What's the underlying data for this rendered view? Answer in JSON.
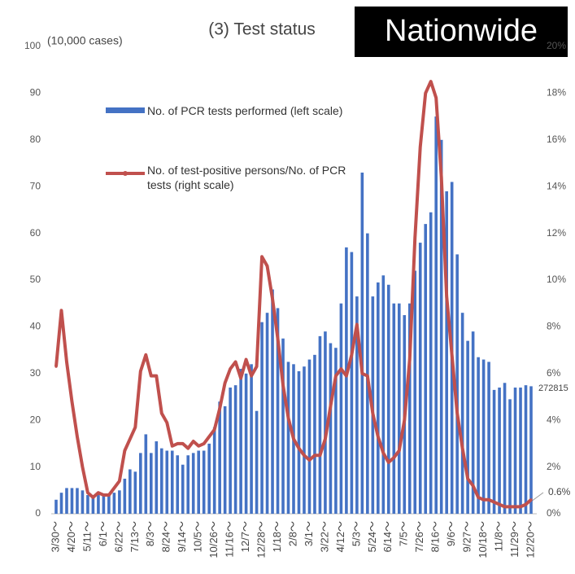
{
  "chart_data": {
    "type": "bar_line",
    "title": "(3) Test status",
    "badge": "Nationwide",
    "y_label": "(10,000 cases)",
    "categories": [
      "3/30～",
      null,
      null,
      "4/20～",
      null,
      null,
      "5/11～",
      null,
      null,
      "6/1～",
      null,
      null,
      "6/22～",
      null,
      null,
      "7/13～",
      null,
      null,
      "8/3～",
      null,
      null,
      "8/24～",
      null,
      null,
      "9/14～",
      null,
      null,
      "10/5～",
      null,
      null,
      "10/26～",
      null,
      null,
      "11/16～",
      null,
      null,
      "12/7～",
      null,
      null,
      "12/28～",
      null,
      null,
      "1/18～",
      null,
      null,
      "2/8～",
      null,
      null,
      "3/1～",
      null,
      null,
      "3/22～",
      null,
      null,
      "4/12～",
      null,
      null,
      "5/3～",
      null,
      null,
      "5/24～",
      null,
      null,
      "6/14～",
      null,
      null,
      "7/5～",
      null,
      null,
      "7/26～",
      null,
      null,
      "8/16～",
      null,
      null,
      "9/6～",
      null,
      null,
      "9/27～",
      null,
      null,
      "10/18～",
      null,
      null,
      "11/8～",
      null,
      null,
      "11/29～",
      null,
      null,
      "12/20～"
    ],
    "series": [
      {
        "name": "No. of PCR tests performed (left scale)",
        "color": "#4472c4",
        "kind": "bar",
        "values": [
          3,
          4.5,
          5.5,
          5.5,
          5.5,
          5,
          4,
          3.5,
          4,
          4,
          4,
          4.5,
          5,
          7.5,
          9.5,
          9,
          13,
          17,
          13,
          15.5,
          14,
          13.5,
          13.5,
          12.5,
          10.5,
          12.5,
          13,
          13.5,
          13.5,
          15,
          18.5,
          24,
          23,
          27,
          27.5,
          31,
          30,
          32,
          22,
          41,
          43,
          48,
          44,
          37.5,
          32.5,
          32,
          30.5,
          31.5,
          33,
          34,
          38,
          39,
          36.5,
          35.5,
          45,
          57,
          56,
          46.5,
          73,
          60,
          46.5,
          49.5,
          51,
          49,
          45,
          45,
          42.5,
          45,
          52,
          58,
          62,
          64.5,
          85,
          80,
          69,
          71,
          55.5,
          43,
          37,
          39,
          33.5,
          33,
          32.5,
          26.5,
          27,
          28,
          24.5,
          27,
          27,
          27.5,
          27.2815
        ]
      },
      {
        "name": "No. of test-positive persons/No. of PCR tests (right scale)",
        "color": "#c0504d",
        "kind": "line",
        "axis": "y2",
        "values": [
          6.3,
          8.7,
          6.5,
          4.8,
          3.3,
          2.0,
          0.9,
          0.7,
          0.9,
          0.8,
          0.8,
          1.1,
          1.4,
          2.7,
          3.2,
          3.7,
          6.1,
          6.8,
          5.9,
          5.9,
          4.3,
          3.9,
          2.9,
          3.0,
          3.0,
          2.8,
          3.1,
          2.9,
          3.0,
          3.3,
          3.6,
          4.5,
          5.6,
          6.2,
          6.5,
          5.8,
          6.6,
          5.9,
          6.3,
          11.0,
          10.6,
          9.2,
          7.5,
          5.5,
          4.1,
          3.2,
          2.8,
          2.5,
          2.3,
          2.5,
          2.5,
          3.2,
          4.6,
          5.9,
          6.2,
          5.9,
          6.8,
          8.1,
          6.0,
          5.9,
          4.3,
          3.3,
          2.6,
          2.2,
          2.4,
          2.7,
          4.0,
          6.6,
          11.8,
          15.7,
          18.0,
          18.5,
          17.8,
          14.4,
          9.3,
          6.8,
          4.3,
          2.8,
          1.5,
          1.2,
          0.7,
          0.6,
          0.6,
          0.5,
          0.4,
          0.3,
          0.3,
          0.3,
          0.3,
          0.4,
          0.6
        ]
      }
    ],
    "ylim": [
      0,
      100
    ],
    "yticks": [
      0,
      10,
      20,
      30,
      40,
      50,
      60,
      70,
      80,
      90,
      100
    ],
    "y2lim": [
      0,
      20
    ],
    "y2ticks": [
      {
        "value": 0,
        "label": "0%"
      },
      {
        "value": 2,
        "label": "2%"
      },
      {
        "value": 4,
        "label": "4%"
      },
      {
        "value": 6,
        "label": "6%"
      },
      {
        "value": 8,
        "label": "8%"
      },
      {
        "value": 10,
        "label": "10%"
      },
      {
        "value": 12,
        "label": "12%"
      },
      {
        "value": 14,
        "label": "14%"
      },
      {
        "value": 16,
        "label": "16%"
      },
      {
        "value": 18,
        "label": "18%"
      },
      {
        "value": 20,
        "label": "20%"
      }
    ],
    "annotations": [
      {
        "text": "272815"
      },
      {
        "text": "0.6%"
      }
    ]
  }
}
